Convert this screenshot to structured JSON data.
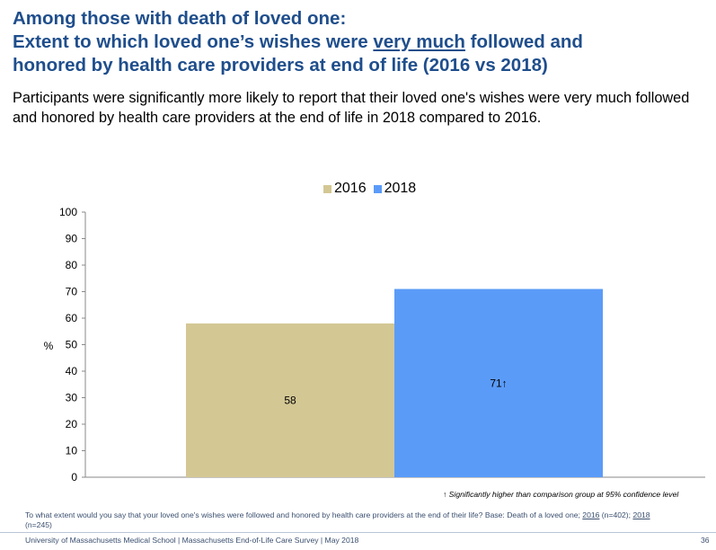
{
  "header": {
    "title_line1": "Among those with death of loved one:",
    "title_line2_pre": "Extent to which loved one’s wishes were ",
    "title_line2_underlined": "very much",
    "title_line2_post": " followed and",
    "title_line3": "honored by health care providers at end of life (2016 vs 2018)",
    "subtitle": "Participants were significantly more likely to report that their loved one's wishes were very much followed and honored by health care providers at the end of life in 2018 compared to 2016."
  },
  "chart_data": {
    "type": "bar",
    "categories": [
      ""
    ],
    "series": [
      {
        "name": "2016",
        "values": [
          58
        ],
        "label": "58",
        "color": "#d3c794"
      },
      {
        "name": "2018",
        "values": [
          71
        ],
        "label": "71↑",
        "color": "#5b9bf8"
      }
    ],
    "ylabel": "%",
    "ylim": [
      0,
      100
    ],
    "yticks": [
      0,
      10,
      20,
      30,
      40,
      50,
      60,
      70,
      80,
      90,
      100
    ],
    "legend_position": "top-center",
    "grid": false
  },
  "footnote": "↑ Significantly higher than comparison group at 95% confidence level",
  "question": {
    "text": "To what extent would you say that your loved one's wishes were followed and honored by health care providers at the end of their life? Base: Death of a loved one; ",
    "base_2016": "2016",
    "base_2016_n": " (n=402); ",
    "base_2018": "2018",
    "base_2018_n": "(n=245)"
  },
  "source": "University of Massachusetts Medical School | Massachusetts End-of-Life Care Survey | May 2018",
  "page_number": "36"
}
